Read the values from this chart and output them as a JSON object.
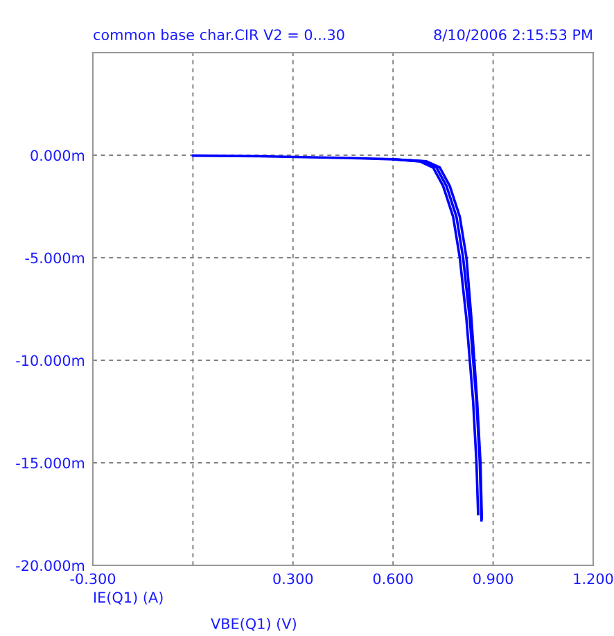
{
  "chart_data": {
    "type": "line",
    "subtitle": "common base char.CIR V2 = 0...30",
    "annotations": [
      "8/10/2006 2:15:53 PM",
      "IE(Q1) (A)"
    ],
    "xlabel": "VBE(Q1) (V)",
    "series": [
      {
        "color": "#0000ff",
        "x": [
          0.0,
          0.2,
          0.5,
          0.6,
          0.68,
          0.72,
          0.75,
          0.78,
          0.8,
          0.82,
          0.84,
          0.85,
          0.855
        ],
        "values": [
          -0.02,
          -0.05,
          -0.15,
          -0.2,
          -0.3,
          -0.6,
          -1.5,
          -3.0,
          -5.0,
          -8.0,
          -12.0,
          -15.0,
          -17.5
        ]
      },
      {
        "color": "#0000ff",
        "x": [
          0.6,
          0.69,
          0.73,
          0.76,
          0.79,
          0.81,
          0.83,
          0.85,
          0.86,
          0.865
        ],
        "values": [
          -0.2,
          -0.3,
          -0.6,
          -1.5,
          -3.0,
          -5.0,
          -8.0,
          -12.0,
          -15.0,
          -17.8
        ]
      },
      {
        "color": "#0000ff",
        "x": [
          0.65,
          0.7,
          0.74,
          0.77,
          0.8,
          0.82,
          0.835,
          0.852,
          0.862,
          0.866
        ],
        "values": [
          -0.25,
          -0.3,
          -0.6,
          -1.5,
          -3.0,
          -5.0,
          -8.0,
          -12.0,
          -15.0,
          -17.7
        ]
      }
    ],
    "xlim": [
      -0.3,
      1.2
    ],
    "xticks": [
      {
        "value": -0.3,
        "label": "-0.300"
      },
      {
        "value": 0,
        "label": null
      },
      {
        "value": 0.3,
        "label": "0.300"
      },
      {
        "value": 0.6,
        "label": "0.600"
      },
      {
        "value": 0.9,
        "label": "0.900"
      },
      {
        "value": 1.2,
        "label": "1.200"
      }
    ],
    "ylim": [
      -20,
      5
    ],
    "yticks": [
      {
        "value": -20,
        "label": "-20.000m"
      },
      {
        "value": -15,
        "label": "-15.000m"
      },
      {
        "value": -10,
        "label": "-10.000m"
      },
      {
        "value": -5,
        "label": "-5.000m"
      },
      {
        "value": 0,
        "label": "0.000m"
      },
      {
        "value": 5,
        "label": null
      }
    ],
    "grid": true,
    "line_style": "solid",
    "marker": "none"
  }
}
